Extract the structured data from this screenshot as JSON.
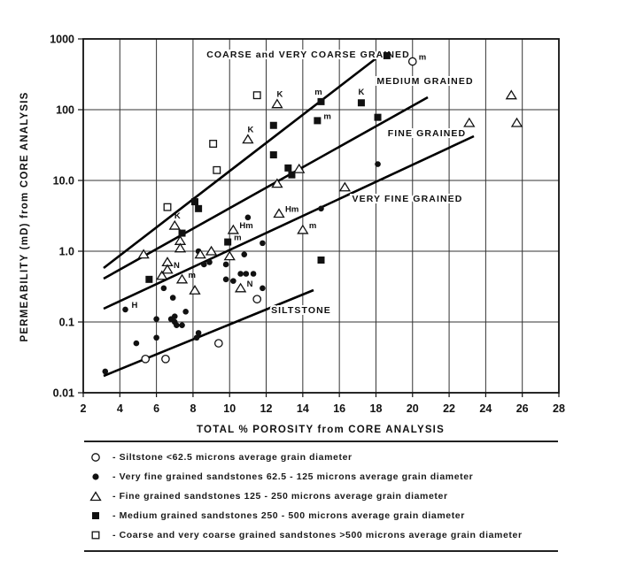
{
  "chart_data": {
    "type": "scatter",
    "title": "",
    "xlabel": "TOTAL % POROSITY from CORE ANALYSIS",
    "ylabel": "PERMEABILITY (mD) from CORE ANALYSIS",
    "xlim": [
      2,
      28
    ],
    "ylim": [
      0.01,
      1000
    ],
    "yscale": "log",
    "grid": true,
    "x_ticks": [
      "2",
      "4",
      "6",
      "8",
      "10",
      "12",
      "14",
      "16",
      "18",
      "20",
      "22",
      "24",
      "26",
      "28"
    ],
    "y_ticks": [
      "0.01",
      "0.1",
      "1.0",
      "10.0",
      "100",
      "1000"
    ],
    "trend_lines": [
      {
        "name": "COARSE and VERY COARSE GRAINED",
        "x": [
          3.1,
          18.5
        ],
        "y": [
          0.55,
          650
        ],
        "label_pos": [
          12.0,
          700
        ]
      },
      {
        "name": "MEDIUM GRAINED",
        "x": [
          3.1,
          20.8
        ],
        "y": [
          0.39,
          140
        ],
        "label_pos": [
          19.0,
          250
        ]
      },
      {
        "name": "FINE GRAINED",
        "x": [
          3.1,
          23.3
        ],
        "y": [
          0.15,
          39
        ],
        "label_pos": [
          19.3,
          26
        ]
      },
      {
        "name": "VERY FINE GRAINED",
        "x": [
          3.1,
          23.3
        ],
        "y": [
          0.15,
          39
        ],
        "label_pos": [
          18.5,
          7
        ]
      },
      {
        "name": "SILTSTONE",
        "x": [
          3.1,
          14.6
        ],
        "y": [
          0.016,
          0.27
        ],
        "label_pos": [
          13.0,
          0.18
        ]
      }
    ],
    "series": [
      {
        "name": "Siltstone <62.5 microns average grain diameter",
        "marker": "open-circle",
        "points": [
          {
            "x": 5.4,
            "y": 0.03
          },
          {
            "x": 6.5,
            "y": 0.03
          },
          {
            "x": 9.4,
            "y": 0.05
          },
          {
            "x": 11.5,
            "y": 0.21
          },
          {
            "x": 20.0,
            "y": 480,
            "note": "m"
          }
        ]
      },
      {
        "name": "Very fine grained sandstones 62.5 - 125 microns average grain diameter",
        "marker": "filled-circle",
        "points": [
          {
            "x": 3.2,
            "y": 0.02
          },
          {
            "x": 4.3,
            "y": 0.15,
            "note": "H"
          },
          {
            "x": 4.9,
            "y": 0.05
          },
          {
            "x": 6.0,
            "y": 0.11
          },
          {
            "x": 6.0,
            "y": 0.06
          },
          {
            "x": 6.4,
            "y": 0.3
          },
          {
            "x": 6.8,
            "y": 0.11
          },
          {
            "x": 7.0,
            "y": 0.12
          },
          {
            "x": 7.0,
            "y": 0.1
          },
          {
            "x": 7.1,
            "y": 0.09
          },
          {
            "x": 7.4,
            "y": 0.09
          },
          {
            "x": 7.6,
            "y": 0.14
          },
          {
            "x": 6.9,
            "y": 0.22
          },
          {
            "x": 8.2,
            "y": 0.06
          },
          {
            "x": 8.3,
            "y": 0.07
          },
          {
            "x": 8.6,
            "y": 0.65
          },
          {
            "x": 8.9,
            "y": 0.7
          },
          {
            "x": 8.3,
            "y": 1.0
          },
          {
            "x": 9.8,
            "y": 0.65
          },
          {
            "x": 9.8,
            "y": 0.4
          },
          {
            "x": 10.2,
            "y": 0.38
          },
          {
            "x": 10.6,
            "y": 0.48
          },
          {
            "x": 10.9,
            "y": 0.48
          },
          {
            "x": 11.3,
            "y": 0.48
          },
          {
            "x": 10.8,
            "y": 0.9
          },
          {
            "x": 11.0,
            "y": 3.0
          },
          {
            "x": 11.8,
            "y": 1.3
          },
          {
            "x": 11.8,
            "y": 0.3
          },
          {
            "x": 15.0,
            "y": 4.0
          },
          {
            "x": 18.1,
            "y": 17
          }
        ]
      },
      {
        "name": "Fine grained sandstones 125 - 250 microns average grain diameter",
        "marker": "open-triangle",
        "points": [
          {
            "x": 5.3,
            "y": 0.9
          },
          {
            "x": 6.3,
            "y": 0.45
          },
          {
            "x": 6.6,
            "y": 0.7
          },
          {
            "x": 6.6,
            "y": 0.55,
            "note": "N"
          },
          {
            "x": 7.0,
            "y": 2.3,
            "note": "K"
          },
          {
            "x": 7.3,
            "y": 1.4
          },
          {
            "x": 7.3,
            "y": 1.1
          },
          {
            "x": 7.4,
            "y": 0.4,
            "note": "m"
          },
          {
            "x": 8.1,
            "y": 0.28
          },
          {
            "x": 8.4,
            "y": 0.9
          },
          {
            "x": 9.0,
            "y": 1.0
          },
          {
            "x": 10.0,
            "y": 0.85
          },
          {
            "x": 10.2,
            "y": 2.0,
            "note": "Hm"
          },
          {
            "x": 10.6,
            "y": 0.3,
            "note": "N"
          },
          {
            "x": 11.0,
            "y": 38,
            "note": "K"
          },
          {
            "x": 12.6,
            "y": 120,
            "note": "K"
          },
          {
            "x": 12.6,
            "y": 9.0
          },
          {
            "x": 12.7,
            "y": 3.4,
            "note": "Hm"
          },
          {
            "x": 13.8,
            "y": 14.5
          },
          {
            "x": 14.0,
            "y": 2.0,
            "note": "m"
          },
          {
            "x": 16.3,
            "y": 8.0
          },
          {
            "x": 23.1,
            "y": 65
          },
          {
            "x": 25.4,
            "y": 160
          },
          {
            "x": 25.7,
            "y": 65
          }
        ]
      },
      {
        "name": "Medium grained sandstones 250 - 500 microns average grain diameter",
        "marker": "filled-square",
        "points": [
          {
            "x": 5.6,
            "y": 0.4
          },
          {
            "x": 7.4,
            "y": 1.8
          },
          {
            "x": 8.1,
            "y": 5.0
          },
          {
            "x": 8.3,
            "y": 4.0
          },
          {
            "x": 9.9,
            "y": 1.35,
            "note": "m"
          },
          {
            "x": 12.4,
            "y": 60
          },
          {
            "x": 12.4,
            "y": 23
          },
          {
            "x": 13.2,
            "y": 15
          },
          {
            "x": 13.4,
            "y": 12
          },
          {
            "x": 14.8,
            "y": 70,
            "note": "m"
          },
          {
            "x": 15.0,
            "y": 130,
            "note": "m"
          },
          {
            "x": 15.0,
            "y": 0.75
          },
          {
            "x": 17.2,
            "y": 125,
            "note": "K"
          },
          {
            "x": 18.1,
            "y": 78
          },
          {
            "x": 18.6,
            "y": 580
          }
        ]
      },
      {
        "name": "Coarse and very coarse grained sandstones >500 microns average grain diameter",
        "marker": "open-square",
        "points": [
          {
            "x": 6.6,
            "y": 4.2
          },
          {
            "x": 9.1,
            "y": 33
          },
          {
            "x": 9.3,
            "y": 14
          },
          {
            "x": 11.5,
            "y": 160
          }
        ]
      }
    ]
  },
  "axes": {
    "xlabel": "TOTAL % POROSITY from CORE ANALYSIS",
    "ylabel": "PERMEABILITY (mD) from CORE ANALYSIS"
  },
  "legend": {
    "items": [
      {
        "marker": "open-circle",
        "label": "- Siltstone <62.5 microns average grain diameter"
      },
      {
        "marker": "filled-circle",
        "label": "- Very fine grained sandstones 62.5 - 125 microns average grain diameter"
      },
      {
        "marker": "open-triangle",
        "label": "- Fine grained sandstones 125 - 250 microns average grain diameter"
      },
      {
        "marker": "filled-square",
        "label": "- Medium grained sandstones 250 - 500 microns average grain diameter"
      },
      {
        "marker": "open-square",
        "label": "- Coarse and very coarse grained sandstones >500 microns average grain diameter"
      }
    ]
  }
}
